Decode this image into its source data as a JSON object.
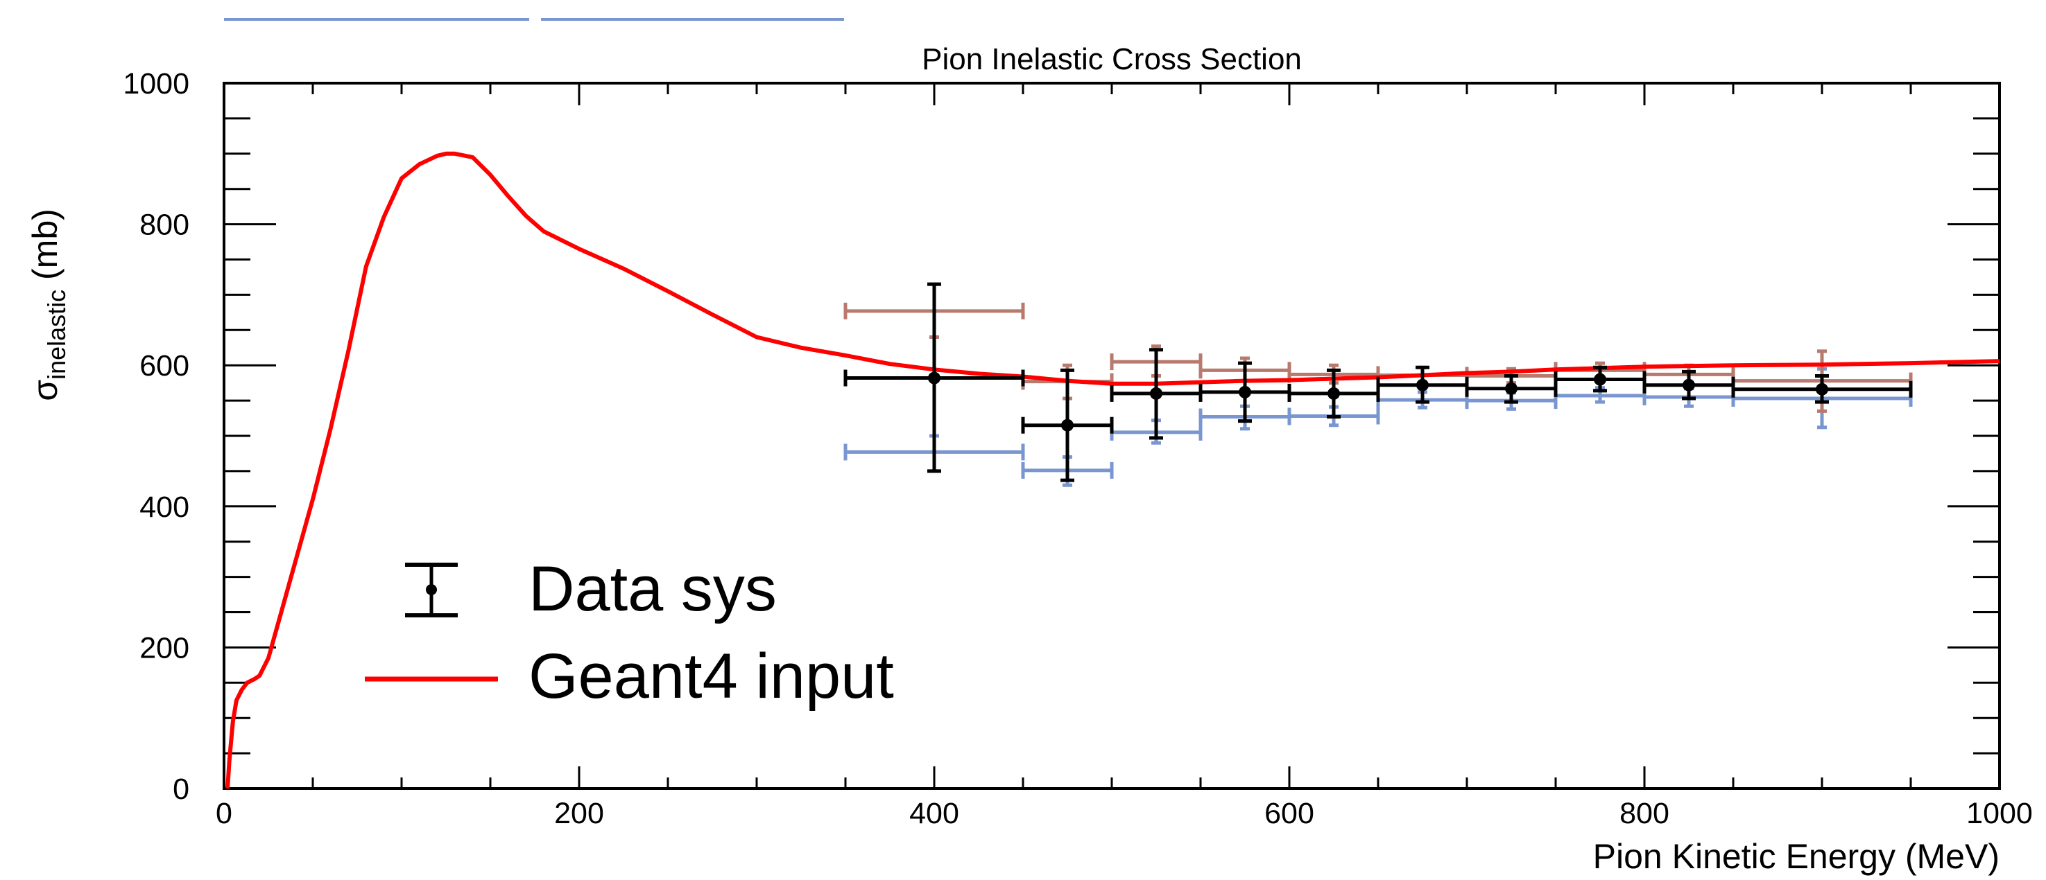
{
  "chart_data": {
    "type": "line",
    "title": "Pion Inelastic Cross Section",
    "xlabel": "Pion Kinetic Energy (MeV)",
    "ylabel_main": "σ",
    "ylabel_sub": "inelastic",
    "ylabel_unit": " (mb)",
    "xlim": [
      0,
      1000
    ],
    "ylim": [
      0,
      1000
    ],
    "x_ticks": [
      "0",
      "200",
      "400",
      "600",
      "800",
      "1000"
    ],
    "y_ticks": [
      "0",
      "200",
      "400",
      "600",
      "800",
      "1000"
    ],
    "grid": false,
    "legend": {
      "placement": "bottom-left",
      "entries": [
        "Data sys",
        "Geant4 input"
      ]
    },
    "colors": {
      "data": "#000000",
      "sys_high": "#b87a6e",
      "sys_low": "#7a96d0",
      "geant4": "#ff0000"
    },
    "series": [
      {
        "name": "Data sys",
        "kind": "points-with-errors",
        "points": [
          {
            "x": 400,
            "xlo": 350,
            "xhi": 450,
            "y": 582,
            "ylo": 450,
            "yhi": 715
          },
          {
            "x": 475,
            "xlo": 450,
            "xhi": 500,
            "y": 515,
            "ylo": 437,
            "yhi": 593
          },
          {
            "x": 525,
            "xlo": 500,
            "xhi": 550,
            "y": 560,
            "ylo": 497,
            "yhi": 622
          },
          {
            "x": 575,
            "xlo": 550,
            "xhi": 600,
            "y": 562,
            "ylo": 521,
            "yhi": 603
          },
          {
            "x": 625,
            "xlo": 600,
            "xhi": 650,
            "y": 560,
            "ylo": 527,
            "yhi": 593
          },
          {
            "x": 675,
            "xlo": 650,
            "xhi": 700,
            "y": 572,
            "ylo": 548,
            "yhi": 597
          },
          {
            "x": 725,
            "xlo": 700,
            "xhi": 750,
            "y": 567,
            "ylo": 548,
            "yhi": 585
          },
          {
            "x": 775,
            "xlo": 750,
            "xhi": 800,
            "y": 580,
            "ylo": 564,
            "yhi": 597
          },
          {
            "x": 825,
            "xlo": 800,
            "xhi": 850,
            "y": 572,
            "ylo": 553,
            "yhi": 591
          },
          {
            "x": 900,
            "xlo": 850,
            "xhi": 950,
            "y": 566,
            "ylo": 548,
            "yhi": 585
          }
        ]
      },
      {
        "name": "",
        "kind": "sys-variation-high",
        "points": [
          {
            "x": 400,
            "xlo": 350,
            "xhi": 450,
            "y": 677,
            "ylo": 640,
            "yhi": 715
          },
          {
            "x": 475,
            "xlo": 450,
            "xhi": 500,
            "y": 577,
            "ylo": 553,
            "yhi": 600
          },
          {
            "x": 525,
            "xlo": 500,
            "xhi": 550,
            "y": 605,
            "ylo": 585,
            "yhi": 627
          },
          {
            "x": 575,
            "xlo": 550,
            "xhi": 600,
            "y": 593,
            "ylo": 578,
            "yhi": 610
          },
          {
            "x": 625,
            "xlo": 600,
            "xhi": 650,
            "y": 587,
            "ylo": 575,
            "yhi": 600
          },
          {
            "x": 675,
            "xlo": 650,
            "xhi": 700,
            "y": 586,
            "ylo": 575,
            "yhi": 597
          },
          {
            "x": 725,
            "xlo": 700,
            "xhi": 750,
            "y": 585,
            "ylo": 575,
            "yhi": 595
          },
          {
            "x": 775,
            "xlo": 750,
            "xhi": 800,
            "y": 593,
            "ylo": 582,
            "yhi": 603
          },
          {
            "x": 825,
            "xlo": 800,
            "xhi": 850,
            "y": 587,
            "ylo": 575,
            "yhi": 600
          },
          {
            "x": 900,
            "xlo": 850,
            "xhi": 950,
            "y": 578,
            "ylo": 535,
            "yhi": 620
          }
        ]
      },
      {
        "name": "",
        "kind": "sys-variation-low",
        "points": [
          {
            "x": 400,
            "xlo": 350,
            "xhi": 450,
            "y": 477,
            "ylo": 450,
            "yhi": 500
          },
          {
            "x": 475,
            "xlo": 450,
            "xhi": 500,
            "y": 451,
            "ylo": 430,
            "yhi": 470
          },
          {
            "x": 525,
            "xlo": 500,
            "xhi": 550,
            "y": 505,
            "ylo": 490,
            "yhi": 522
          },
          {
            "x": 575,
            "xlo": 550,
            "xhi": 600,
            "y": 527,
            "ylo": 510,
            "yhi": 542
          },
          {
            "x": 625,
            "xlo": 600,
            "xhi": 650,
            "y": 528,
            "ylo": 515,
            "yhi": 541
          },
          {
            "x": 675,
            "xlo": 650,
            "xhi": 700,
            "y": 551,
            "ylo": 540,
            "yhi": 562
          },
          {
            "x": 725,
            "xlo": 700,
            "xhi": 750,
            "y": 550,
            "ylo": 538,
            "yhi": 561
          },
          {
            "x": 775,
            "xlo": 750,
            "xhi": 800,
            "y": 557,
            "ylo": 548,
            "yhi": 568
          },
          {
            "x": 825,
            "xlo": 800,
            "xhi": 850,
            "y": 555,
            "ylo": 542,
            "yhi": 567
          },
          {
            "x": 900,
            "xlo": 850,
            "xhi": 950,
            "y": 553,
            "ylo": 512,
            "yhi": 595
          }
        ]
      },
      {
        "name": "Geant4 input",
        "kind": "line",
        "x": [
          2,
          3,
          5,
          7,
          10,
          13,
          17,
          20,
          25,
          30,
          40,
          50,
          60,
          70,
          80,
          90,
          100,
          110,
          120,
          125,
          130,
          140,
          150,
          160,
          170,
          180,
          200,
          225,
          250,
          275,
          300,
          325,
          350,
          375,
          400,
          425,
          450,
          475,
          500,
          525,
          550,
          575,
          600,
          625,
          650,
          675,
          700,
          725,
          750,
          775,
          800,
          850,
          900,
          950,
          1000
        ],
        "y": [
          0,
          40,
          95,
          125,
          140,
          150,
          155,
          160,
          185,
          230,
          320,
          410,
          510,
          620,
          740,
          810,
          865,
          885,
          897,
          900,
          900,
          895,
          870,
          840,
          812,
          790,
          765,
          737,
          705,
          672,
          640,
          625,
          614,
          602,
          594,
          588,
          584,
          578,
          574,
          574,
          576,
          578,
          579,
          581,
          583,
          586,
          589,
          591,
          594,
          596,
          598,
          600,
          601,
          603,
          606
        ]
      }
    ]
  }
}
